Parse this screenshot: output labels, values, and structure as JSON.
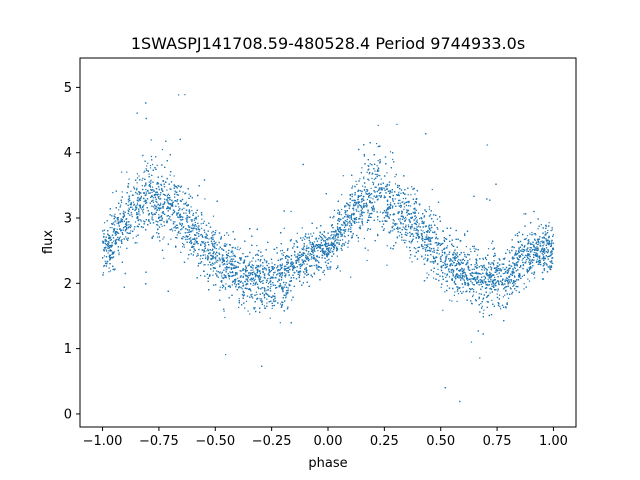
{
  "chart_data": {
    "type": "scatter",
    "title": "1SWASPJ141708.59-480528.4 Period 9744933.0s",
    "xlabel": "phase",
    "ylabel": "flux",
    "xlim": [
      -1.1,
      1.1
    ],
    "ylim": [
      -0.2,
      5.45
    ],
    "x_ticks": [
      -1.0,
      -0.75,
      -0.5,
      -0.25,
      0.0,
      0.25,
      0.5,
      0.75,
      1.0
    ],
    "x_tick_labels": [
      "−1.00",
      "−0.75",
      "−0.50",
      "−0.25",
      "0.00",
      "0.25",
      "0.50",
      "0.75",
      "1.00"
    ],
    "y_ticks": [
      0,
      1,
      2,
      3,
      4,
      5
    ],
    "y_tick_labels": [
      "0",
      "1",
      "2",
      "3",
      "4",
      "5"
    ],
    "grid": false,
    "marker_color": "#1f77b4",
    "series": [
      {
        "points_description_free": true,
        "profile_phase": [
          -1.0,
          -0.95,
          -0.9,
          -0.85,
          -0.8,
          -0.75,
          -0.7,
          -0.65,
          -0.6,
          -0.55,
          -0.5,
          -0.45,
          -0.4,
          -0.35,
          -0.3,
          -0.25,
          -0.2,
          -0.15,
          -0.1,
          -0.05,
          0.0,
          0.05,
          0.1,
          0.15,
          0.2,
          0.25,
          0.3,
          0.35,
          0.4,
          0.45,
          0.5,
          0.55,
          0.6,
          0.65,
          0.7,
          0.75,
          0.8,
          0.85,
          0.9,
          0.95,
          1.0
        ],
        "profile_median_flux": [
          2.5,
          2.7,
          2.95,
          3.15,
          3.35,
          3.25,
          3.2,
          3.05,
          2.85,
          2.6,
          2.4,
          2.25,
          2.15,
          2.1,
          2.05,
          2.05,
          2.1,
          2.25,
          2.4,
          2.5,
          2.55,
          2.75,
          3.0,
          3.25,
          3.4,
          3.3,
          3.15,
          3.0,
          2.8,
          2.65,
          2.45,
          2.3,
          2.2,
          2.1,
          2.05,
          2.05,
          2.15,
          2.3,
          2.45,
          2.5,
          2.5
        ],
        "profile_spread": [
          0.35,
          0.4,
          0.4,
          0.45,
          0.55,
          0.5,
          0.5,
          0.5,
          0.45,
          0.4,
          0.4,
          0.4,
          0.4,
          0.4,
          0.45,
          0.4,
          0.4,
          0.35,
          0.35,
          0.3,
          0.3,
          0.35,
          0.4,
          0.5,
          0.55,
          0.55,
          0.5,
          0.45,
          0.45,
          0.4,
          0.4,
          0.4,
          0.4,
          0.45,
          0.45,
          0.4,
          0.4,
          0.35,
          0.35,
          0.35,
          0.35
        ]
      }
    ]
  }
}
